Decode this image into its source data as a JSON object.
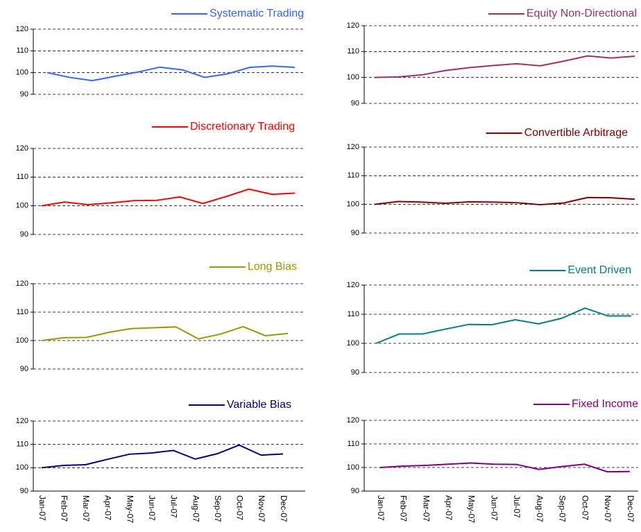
{
  "chart_data": [
    {
      "type": "line",
      "ylim": [
        90,
        120
      ],
      "yticks": [
        90,
        100,
        110,
        120
      ],
      "grid": true,
      "series": [
        {
          "name": "Systematic Trading",
          "color": "#3366ff",
          "values": [
            100,
            97.8,
            96.3,
            98.3,
            100.2,
            102.5,
            101.3,
            97.8,
            99.4,
            102.4,
            103,
            102.4
          ]
        }
      ]
    },
    {
      "type": "line",
      "ylim": [
        90,
        120
      ],
      "yticks": [
        90,
        100,
        110,
        120
      ],
      "grid": true,
      "series": [
        {
          "name": "Discretionary Trading",
          "color": "#ff0000",
          "values": [
            100,
            101.3,
            100.4,
            101,
            101.8,
            101.9,
            103.1,
            100.8,
            103.2,
            105.8,
            104,
            104.4
          ]
        }
      ]
    },
    {
      "type": "line",
      "ylim": [
        90,
        120
      ],
      "yticks": [
        90,
        100,
        110,
        120
      ],
      "grid": true,
      "series": [
        {
          "name": "Long Bias",
          "color": "#999900",
          "values": [
            100,
            101,
            101.1,
            102.9,
            104.2,
            104.5,
            104.8,
            100.6,
            102.3,
            104.9,
            101.7,
            102.5
          ]
        }
      ]
    },
    {
      "type": "line",
      "ylim": [
        90,
        120
      ],
      "yticks": [
        90,
        100,
        110,
        120
      ],
      "grid": true,
      "categories": [
        "Jan-07",
        "Feb-07",
        "Mar-07",
        "Apr-07",
        "May-07",
        "Jun-07",
        "Jul-07",
        "Aug-07",
        "Sep-07",
        "Oct-07",
        "Nov-07",
        "Dec-07"
      ],
      "series": [
        {
          "name": "Variable Bias",
          "color": "#000080",
          "values": [
            100,
            101,
            101.3,
            103.6,
            105.8,
            106.3,
            107.4,
            103.7,
            106,
            109.7,
            105.4,
            105.9
          ]
        }
      ]
    },
    {
      "type": "line",
      "ylim": [
        90,
        120
      ],
      "yticks": [
        90,
        100,
        110,
        120
      ],
      "grid": true,
      "series": [
        {
          "name": "Equity Non-Directional",
          "color": "#993366",
          "values": [
            100,
            100.2,
            101,
            102.7,
            103.8,
            104.6,
            105.3,
            104.5,
            106.3,
            108.3,
            107.5,
            108.2
          ]
        }
      ]
    },
    {
      "type": "line",
      "ylim": [
        90,
        120
      ],
      "yticks": [
        90,
        100,
        110,
        120
      ],
      "grid": true,
      "series": [
        {
          "name": "Convertible Arbitrage",
          "color": "#800000",
          "values": [
            100,
            101,
            100.8,
            100.4,
            100.9,
            100.8,
            100.6,
            99.9,
            100.5,
            102.4,
            102.3,
            101.8
          ]
        }
      ]
    },
    {
      "type": "line",
      "ylim": [
        90,
        120
      ],
      "yticks": [
        90,
        100,
        110,
        120
      ],
      "grid": true,
      "series": [
        {
          "name": "Event Driven",
          "color": "#008080",
          "values": [
            100,
            103.2,
            103.2,
            104.9,
            106.5,
            106.4,
            108.1,
            106.7,
            108.6,
            112.1,
            109.4,
            109.4
          ]
        }
      ]
    },
    {
      "type": "line",
      "ylim": [
        90,
        120
      ],
      "yticks": [
        90,
        100,
        110,
        120
      ],
      "grid": true,
      "categories": [
        "Jan-07",
        "Feb-07",
        "Mar-07",
        "Apr-07",
        "May-07",
        "Jun-07",
        "Jul-07",
        "Aug-07",
        "Sep-07",
        "Oct-07",
        "Nov-07",
        "Dec-07"
      ],
      "series": [
        {
          "name": "Fixed Income",
          "color": "#800080",
          "values": [
            100,
            100.6,
            100.9,
            101.4,
            101.9,
            101.4,
            101.3,
            99.2,
            100.4,
            101.4,
            98.2,
            98.3
          ]
        }
      ]
    }
  ]
}
